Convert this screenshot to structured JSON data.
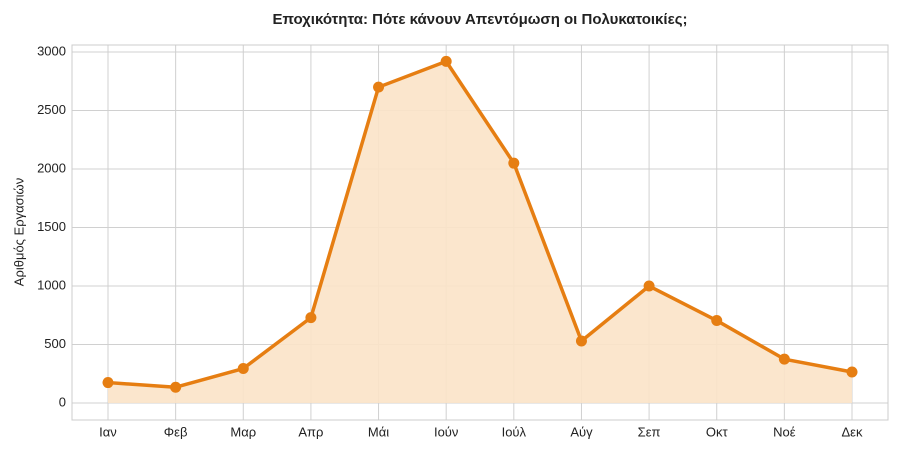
{
  "chart_data": {
    "type": "line",
    "title": "Εποχικότητα: Πότε κάνουν Απεντόμωση οι Πολυκατοικίες;",
    "y_label": "Αριθμός Εργασιών",
    "categories": [
      "Ιαν",
      "Φεβ",
      "Μαρ",
      "Απρ",
      "Μάι",
      "Ιούν",
      "Ιούλ",
      "Αύγ",
      "Σεπ",
      "Οκτ",
      "Νοέ",
      "Δεκ"
    ],
    "values": [
      175,
      135,
      295,
      730,
      2700,
      2920,
      2050,
      530,
      1000,
      705,
      375,
      265
    ],
    "color": "#e67e12",
    "fill_color": "#fbe3c8",
    "ylim": [
      -145,
      3060
    ],
    "yticks": [
      0,
      500,
      1000,
      1500,
      2000,
      2500,
      3000
    ],
    "grid": true
  }
}
